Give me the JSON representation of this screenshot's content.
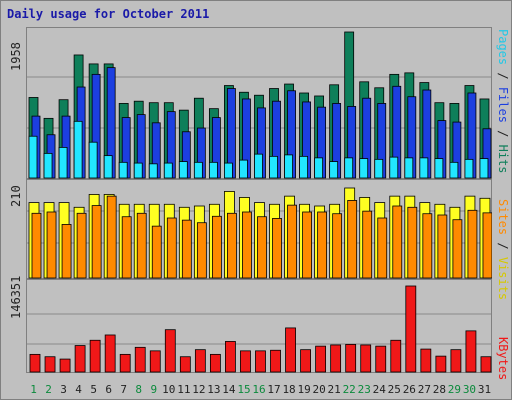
{
  "title": "Daily usage for October 2011",
  "colors": {
    "hits": "#0e7f5a",
    "files": "#1c3fe0",
    "pages": "#22e6ff",
    "visits": "#ffff22",
    "sites": "#ff8a00",
    "kbytes": "#f01818",
    "day_normal": "#222222",
    "day_weekend": "#0b8a3c"
  },
  "chart_data": [
    {
      "type": "bar",
      "title": "Daily usage for October 2011",
      "categories": [
        "1",
        "2",
        "3",
        "4",
        "5",
        "6",
        "7",
        "8",
        "9",
        "10",
        "11",
        "12",
        "13",
        "14",
        "15",
        "16",
        "17",
        "18",
        "19",
        "20",
        "21",
        "22",
        "23",
        "24",
        "25",
        "26",
        "27",
        "28",
        "29",
        "30",
        "31"
      ],
      "weekend_days": [
        "1",
        "2",
        "8",
        "9",
        "15",
        "16",
        "22",
        "23",
        "29",
        "30"
      ],
      "ymax_label": "1958",
      "ylim": [
        0,
        1958
      ],
      "ylabel_parts": [
        "Pages",
        "Files",
        "Hits"
      ],
      "series": [
        {
          "name": "Hits",
          "values": [
            1080,
            800,
            1050,
            1650,
            1530,
            1530,
            1000,
            1030,
            1010,
            1010,
            910,
            1070,
            930,
            1240,
            1150,
            1110,
            1200,
            1260,
            1140,
            1100,
            1250,
            1958,
            1290,
            1210,
            1390,
            1410,
            1280,
            1010,
            1000,
            1240,
            1060
          ]
        },
        {
          "name": "Files",
          "values": [
            830,
            580,
            830,
            1220,
            1390,
            1480,
            810,
            850,
            740,
            890,
            620,
            670,
            810,
            1200,
            1060,
            940,
            1030,
            1170,
            1020,
            950,
            1000,
            960,
            1070,
            1000,
            1230,
            1090,
            1180,
            770,
            750,
            1140,
            660
          ]
        },
        {
          "name": "Pages",
          "values": [
            560,
            330,
            410,
            760,
            480,
            300,
            210,
            200,
            190,
            200,
            220,
            210,
            210,
            200,
            240,
            320,
            290,
            310,
            290,
            270,
            220,
            270,
            260,
            250,
            280,
            270,
            270,
            260,
            210,
            250,
            260
          ]
        }
      ]
    },
    {
      "type": "bar",
      "categories": [
        "1",
        "2",
        "3",
        "4",
        "5",
        "6",
        "7",
        "8",
        "9",
        "10",
        "11",
        "12",
        "13",
        "14",
        "15",
        "16",
        "17",
        "18",
        "19",
        "20",
        "21",
        "22",
        "23",
        "24",
        "25",
        "26",
        "27",
        "28",
        "29",
        "30",
        "31"
      ],
      "ymax_label": "210",
      "ylim": [
        0,
        210
      ],
      "ylabel_parts": [
        "Sites",
        "Visits"
      ],
      "series": [
        {
          "name": "Visits",
          "values": [
            176,
            176,
            176,
            165,
            195,
            195,
            172,
            172,
            172,
            172,
            165,
            168,
            172,
            202,
            188,
            176,
            172,
            191,
            172,
            168,
            172,
            210,
            188,
            176,
            191,
            191,
            176,
            172,
            165,
            191,
            186
          ]
        },
        {
          "name": "Sites",
          "values": [
            151,
            154,
            125,
            151,
            169,
            191,
            143,
            151,
            121,
            140,
            135,
            129,
            144,
            151,
            154,
            143,
            139,
            170,
            154,
            154,
            150,
            181,
            156,
            140,
            168,
            165,
            150,
            147,
            136,
            158,
            152
          ]
        }
      ]
    },
    {
      "type": "bar",
      "categories": [
        "1",
        "2",
        "3",
        "4",
        "5",
        "6",
        "7",
        "8",
        "9",
        "10",
        "11",
        "12",
        "13",
        "14",
        "15",
        "16",
        "17",
        "18",
        "19",
        "20",
        "21",
        "22",
        "23",
        "24",
        "25",
        "26",
        "27",
        "28",
        "29",
        "30",
        "31"
      ],
      "ymax_label": "146351",
      "ylim": [
        0,
        146351
      ],
      "ylabel_parts": [
        "KBytes"
      ],
      "series": [
        {
          "name": "KBytes",
          "values": [
            30000,
            26000,
            22000,
            45000,
            54000,
            63000,
            30000,
            42000,
            36000,
            72000,
            26000,
            38000,
            30000,
            52000,
            36000,
            36000,
            37000,
            75000,
            38000,
            44000,
            46000,
            47000,
            46000,
            44000,
            54000,
            146351,
            39000,
            27000,
            38000,
            70000,
            26000
          ]
        }
      ]
    }
  ]
}
